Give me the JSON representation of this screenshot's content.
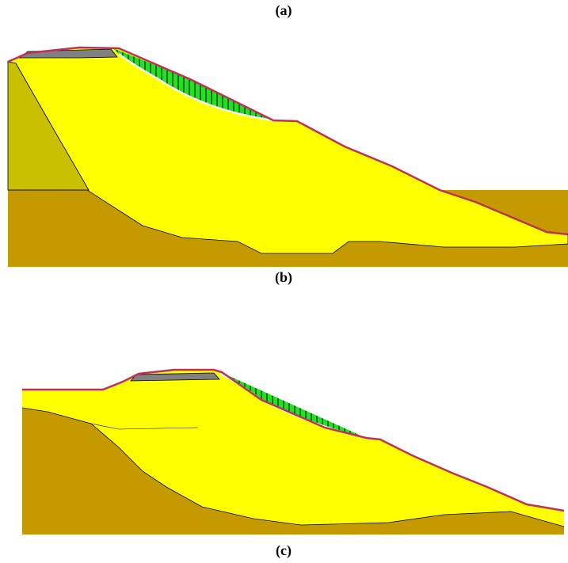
{
  "labels": [
    "(a)",
    "(b)",
    "(c)"
  ]
}
